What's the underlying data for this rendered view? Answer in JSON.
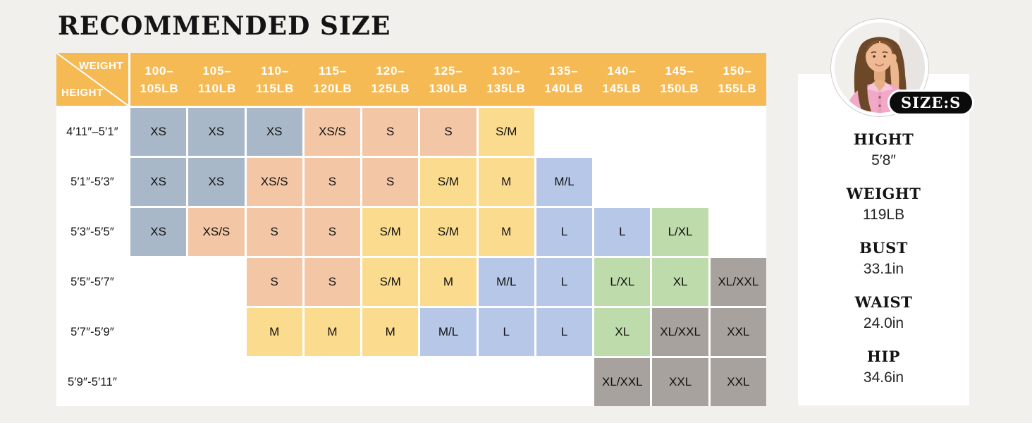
{
  "title": "RECOMMENDED SIZE",
  "colors": {
    "page_bg": "#f2f0ed",
    "table_bg": "#ffffff",
    "header_bg": "#f6ba55",
    "header_text": "#ffffff",
    "badge_bg": "#0b0b0b"
  },
  "size_chart": {
    "corner": {
      "weight_label": "WEIGHT",
      "height_label": "HEIGHT"
    },
    "weight_headers": [
      "100–\n105LB",
      "105–\n110LB",
      "110–\n115LB",
      "115–\n120LB",
      "120–\n125LB",
      "125–\n130LB",
      "130–\n135LB",
      "135–\n140LB",
      "140–\n145LB",
      "145–\n150LB",
      "150–\n155LB"
    ],
    "size_colors": {
      "XS": "#a9b8c8",
      "XS/S": "#f3c6a5",
      "S": "#f3c6a5",
      "S/M": "#fbdc8e",
      "M": "#fbdc8e",
      "M/L": "#b7c7e8",
      "L": "#b7c7e8",
      "L/XL": "#bedcab",
      "XL": "#bedcab",
      "XL/XXL": "#a8a29e",
      "XXL": "#a8a29e"
    },
    "rows": [
      {
        "height": "4′11″–5′1″",
        "cells": [
          "XS",
          "XS",
          "XS",
          "XS/S",
          "S",
          "S",
          "S/M",
          null,
          null,
          null,
          null
        ]
      },
      {
        "height": "5′1″-5′3″",
        "cells": [
          "XS",
          "XS",
          "XS/S",
          "S",
          "S",
          "S/M",
          "M",
          "M/L",
          null,
          null,
          null
        ]
      },
      {
        "height": "5′3″-5′5″",
        "cells": [
          "XS",
          "XS/S",
          "S",
          "S",
          "S/M",
          "S/M",
          "M",
          "L",
          "L",
          "L/XL",
          null
        ]
      },
      {
        "height": "5′5″-5′7″",
        "cells": [
          null,
          null,
          "S",
          "S",
          "S/M",
          "M",
          "M/L",
          "L",
          "L/XL",
          "XL",
          "XL/XXL"
        ]
      },
      {
        "height": "5′7″-5′9″",
        "cells": [
          null,
          null,
          "M",
          "M",
          "M",
          "M/L",
          "L",
          "L",
          "XL",
          "XL/XXL",
          "XXL"
        ]
      },
      {
        "height": "5′9″-5′11″",
        "cells": [
          null,
          null,
          null,
          null,
          null,
          null,
          null,
          null,
          "XL/XXL",
          "XXL",
          "XXL"
        ]
      }
    ]
  },
  "model_panel": {
    "badge": "SIZE:S",
    "stats": [
      {
        "label": "HIGHT",
        "value": "5′8″"
      },
      {
        "label": "WEIGHT",
        "value": "119LB"
      },
      {
        "label": "BUST",
        "value": "33.1in"
      },
      {
        "label": "WAIST",
        "value": "24.0in"
      },
      {
        "label": "HIP",
        "value": "34.6in"
      }
    ]
  }
}
